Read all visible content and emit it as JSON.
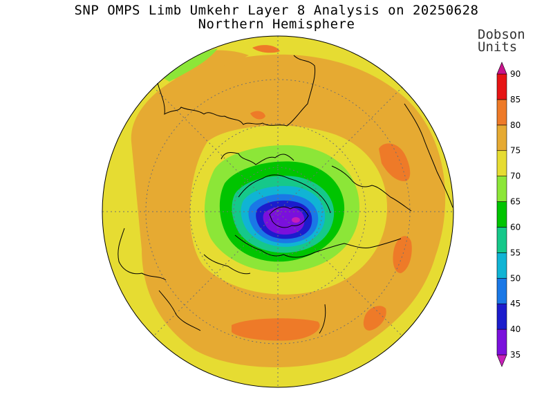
{
  "title": "SNP OMPS Limb Umkehr Layer 8 Analysis on 20250628",
  "subtitle": "Northern Hemisphere",
  "colorbar": {
    "units_line1": "Dobson",
    "units_line2": "Units",
    "bins": [
      {
        "from": 30,
        "to": 35,
        "color": "#c61fb8"
      },
      {
        "from": 35,
        "to": 40,
        "color": "#7a10dc"
      },
      {
        "from": 40,
        "to": 45,
        "color": "#1c1ccc"
      },
      {
        "from": 45,
        "to": 50,
        "color": "#1a78e6"
      },
      {
        "from": 50,
        "to": 55,
        "color": "#10b4d4"
      },
      {
        "from": 55,
        "to": 60,
        "color": "#16c88a"
      },
      {
        "from": 60,
        "to": 65,
        "color": "#00c400"
      },
      {
        "from": 65,
        "to": 70,
        "color": "#8ce638"
      },
      {
        "from": 70,
        "to": 75,
        "color": "#e6dc32"
      },
      {
        "from": 75,
        "to": 80,
        "color": "#e6aa32"
      },
      {
        "from": 80,
        "to": 85,
        "color": "#ee7a28"
      },
      {
        "from": 85,
        "to": 90,
        "color": "#e61414"
      },
      {
        "from": 90,
        "to": 95,
        "color": "#c8148c"
      }
    ],
    "tick_labels": [
      "35",
      "40",
      "45",
      "50",
      "55",
      "60",
      "65",
      "70",
      "75",
      "80",
      "85",
      "90"
    ]
  }
}
